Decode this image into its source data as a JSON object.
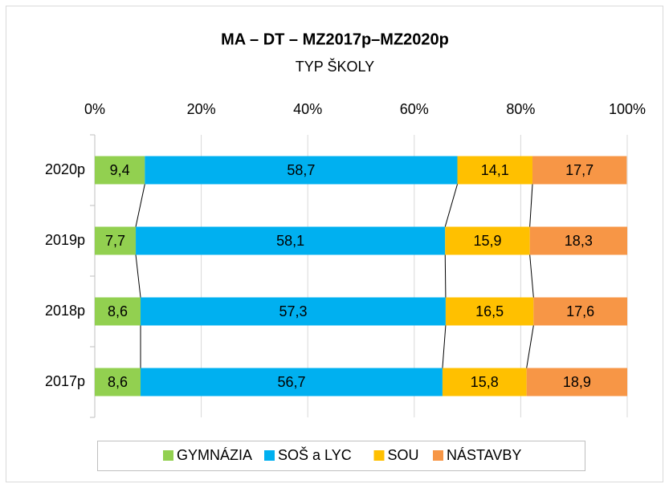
{
  "chart_data": {
    "type": "stacked_barh",
    "title": "MA – DT – MZ2017p–MZ2020p",
    "subtitle": "TYP ŠKOLY",
    "categories": [
      "2020p",
      "2019p",
      "2018p",
      "2017p"
    ],
    "series": [
      {
        "name": "GYMNÁZIA",
        "color": "#92d050",
        "values": [
          9.4,
          7.7,
          8.6,
          8.6
        ],
        "value_labels": [
          "9,4",
          "7,7",
          "8,6",
          "8,6"
        ]
      },
      {
        "name": "SOŠ a LYC",
        "color": "#00b0f0",
        "values": [
          58.7,
          58.1,
          57.3,
          56.7
        ],
        "value_labels": [
          "58,7",
          "58,1",
          "57,3",
          "56,7"
        ]
      },
      {
        "name": "SOU",
        "color": "#ffc000",
        "values": [
          14.1,
          15.9,
          16.5,
          15.8
        ],
        "value_labels": [
          "14,1",
          "15,9",
          "16,5",
          "15,8"
        ]
      },
      {
        "name": "NÁSTAVBY",
        "color": "#f79646",
        "values": [
          17.7,
          18.3,
          17.6,
          18.9
        ],
        "value_labels": [
          "17,7",
          "18,3",
          "17,6",
          "18,9"
        ]
      }
    ],
    "xlim": [
      0,
      100
    ],
    "xticks": [
      {
        "value": 0,
        "label": "0%"
      },
      {
        "value": 20,
        "label": "20%"
      },
      {
        "value": 40,
        "label": "40%"
      },
      {
        "value": 60,
        "label": "60%"
      },
      {
        "value": 80,
        "label": "80%"
      },
      {
        "value": 100,
        "label": "100%"
      }
    ],
    "grid": true,
    "legend": "bottom"
  }
}
